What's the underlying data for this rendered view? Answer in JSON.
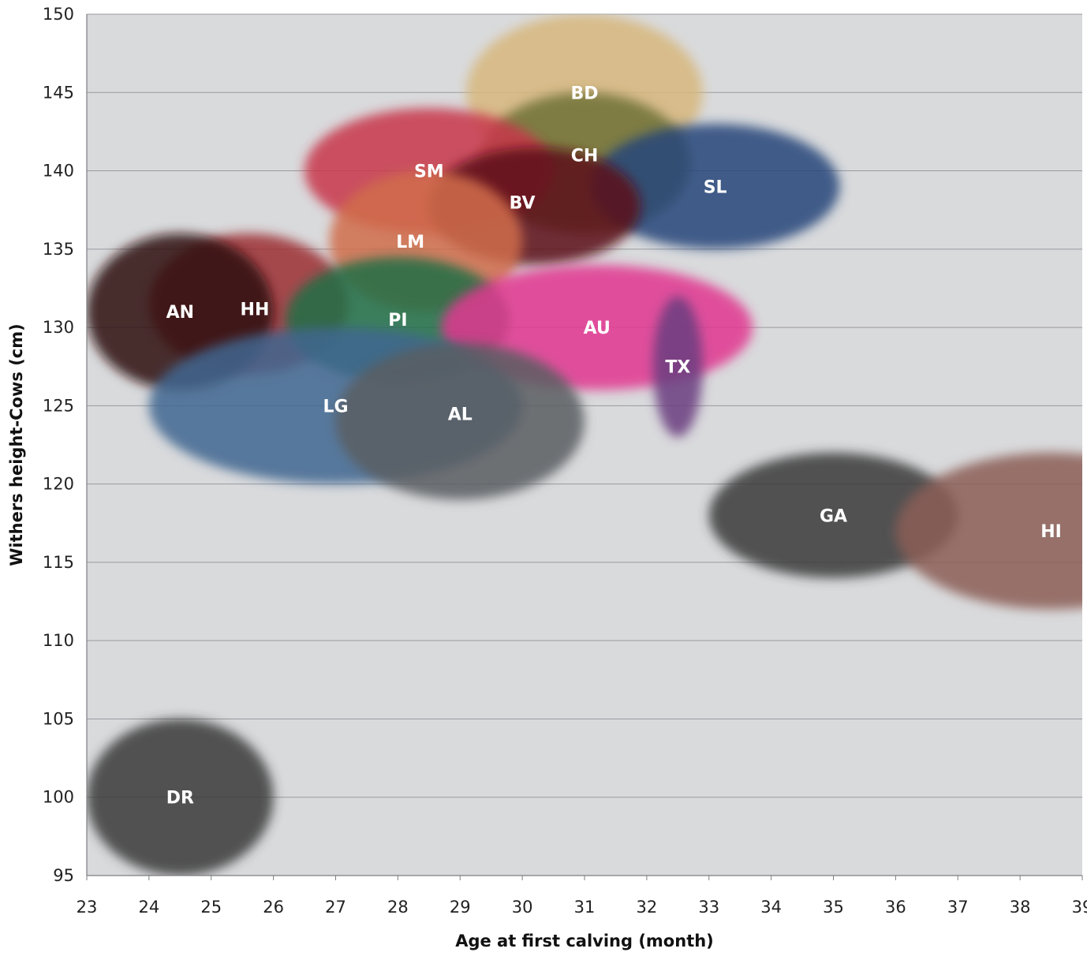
{
  "chart_data": {
    "type": "scatter",
    "title": "",
    "xlabel": "Age at first calving (month)",
    "ylabel": "Withers height-Cows (cm)",
    "xlim": [
      23,
      39
    ],
    "ylim": [
      95,
      150
    ],
    "xticks": [
      "23",
      "24",
      "25",
      "26",
      "27",
      "28",
      "29",
      "30",
      "31",
      "32",
      "33",
      "34",
      "35",
      "36",
      "37",
      "38",
      "39"
    ],
    "yticks": [
      "150",
      "145",
      "140",
      "135",
      "130",
      "125",
      "120",
      "115",
      "110",
      "105",
      "100",
      "95"
    ],
    "grid": "horizontal",
    "background": "#d9dadc",
    "breeds": [
      {
        "label": "BD",
        "x": 31.0,
        "y": 145.0,
        "x_range": [
          29.1,
          32.9
        ],
        "y_range": [
          140.0,
          150.0
        ],
        "color": "#d8b77c"
      },
      {
        "label": "CH",
        "x": 31.0,
        "y": 141.0,
        "x_range": [
          29.3,
          32.7
        ],
        "y_range": [
          136.0,
          145.0
        ],
        "color": "#6e7135"
      },
      {
        "label": "SL",
        "x": 33.1,
        "y": 139.0,
        "x_range": [
          31.1,
          35.1
        ],
        "y_range": [
          135.0,
          143.0
        ],
        "color": "#23447a"
      },
      {
        "label": "SM",
        "x": 28.5,
        "y": 140.0,
        "x_range": [
          26.5,
          30.5
        ],
        "y_range": [
          136.0,
          144.0
        ],
        "color": "#c8364a"
      },
      {
        "label": "BV",
        "x": 30.0,
        "y": 138.0,
        "x_range": [
          28.5,
          31.9
        ],
        "y_range": [
          134.0,
          141.5
        ],
        "color": "#5c0e14"
      },
      {
        "label": "LM",
        "x": 28.2,
        "y": 135.5,
        "x_range": [
          26.9,
          30.0
        ],
        "y_range": [
          131.0,
          140.0
        ],
        "color": "#d06c4a"
      },
      {
        "label": "HH",
        "x": 25.7,
        "y": 131.2,
        "x_range": [
          24.0,
          27.2
        ],
        "y_range": [
          127.0,
          136.0
        ],
        "color": "#9c2d33"
      },
      {
        "label": "AN",
        "x": 24.5,
        "y": 131.0,
        "x_range": [
          23.0,
          26.0
        ],
        "y_range": [
          126.0,
          136.0
        ],
        "color": "#2e0f12"
      },
      {
        "label": "PI",
        "x": 28.0,
        "y": 130.5,
        "x_range": [
          26.2,
          29.8
        ],
        "y_range": [
          126.5,
          134.5
        ],
        "color": "#1e6f47"
      },
      {
        "label": "AU",
        "x": 31.2,
        "y": 130.0,
        "x_range": [
          28.7,
          33.7
        ],
        "y_range": [
          126.0,
          134.0
        ],
        "color": "#e2378f"
      },
      {
        "label": "TX",
        "x": 32.5,
        "y": 127.5,
        "x_range": [
          32.1,
          32.9
        ],
        "y_range": [
          123.0,
          132.0
        ],
        "color": "#6a3c7f"
      },
      {
        "label": "LG",
        "x": 27.0,
        "y": 125.0,
        "x_range": [
          24.0,
          30.0
        ],
        "y_range": [
          120.0,
          130.0
        ],
        "color": "#3f6690"
      },
      {
        "label": "AL",
        "x": 29.0,
        "y": 124.5,
        "x_range": [
          27.0,
          31.0
        ],
        "y_range": [
          119.0,
          129.0
        ],
        "color": "#5b5d62"
      },
      {
        "label": "GA",
        "x": 35.0,
        "y": 118.0,
        "x_range": [
          33.0,
          37.0
        ],
        "y_range": [
          114.0,
          122.0
        ],
        "color": "#3a3a3a"
      },
      {
        "label": "HI",
        "x": 38.5,
        "y": 117.0,
        "x_range": [
          36.0,
          41.0
        ],
        "y_range": [
          112.0,
          122.0
        ],
        "color": "#8b5e55"
      },
      {
        "label": "DR",
        "x": 24.5,
        "y": 100.0,
        "x_range": [
          23.0,
          26.0
        ],
        "y_range": [
          95.0,
          105.0
        ],
        "color": "#3a3a3a"
      }
    ]
  }
}
